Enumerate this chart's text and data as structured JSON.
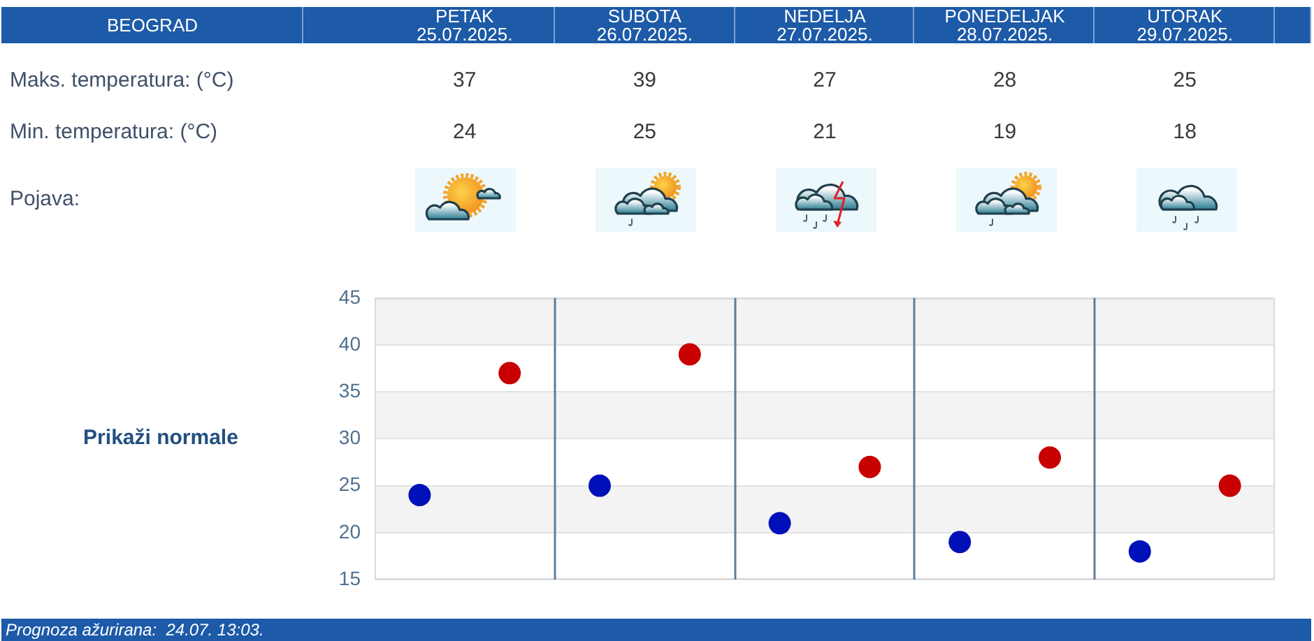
{
  "chart_data": {
    "type": "scatter",
    "title": "BEOGRAD",
    "categories": [
      null,
      null,
      null,
      null,
      null
    ],
    "series": [
      {
        "color": "#c80000",
        "values": [
          37,
          39,
          27,
          28,
          25
        ]
      },
      {
        "color": "#0010b8",
        "values": [
          24,
          25,
          21,
          19,
          18
        ]
      }
    ],
    "ylim": [
      15,
      45
    ],
    "yticks": [
      15,
      20,
      25,
      30,
      35,
      40,
      45
    ],
    "grid": true,
    "marker": "circle",
    "data_labels": true,
    "annotations": [
      "PETAK 25.07.2025.",
      "SUBOTA 26.07.2025.",
      "NEDELJA 27.07.2025.",
      "PONEDELJAK 28.07.2025.",
      "UTORAK 29.07.2025.",
      "Maks. temperatura: (°C)",
      "Min. temperatura: (°C)",
      "Pojava:",
      "Prikaži normale",
      "Prognoza ažurirana:  24.07. 13:03."
    ]
  }
}
